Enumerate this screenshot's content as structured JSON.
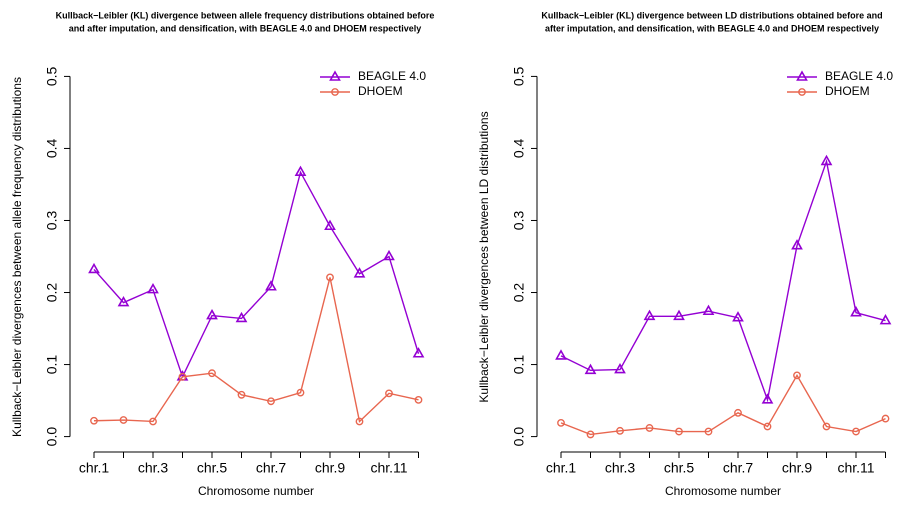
{
  "chart_data": [
    {
      "type": "line",
      "title": [
        "Kullback−Leibler (KL) divergence between allele frequency distributions obtained before",
        "and after imputation, and densification, with BEAGLE 4.0 and DHOEM respectively"
      ],
      "x_label": "Chromosome number",
      "y_label": "Kullback−Leibler divergences between allele frequency distributions",
      "categories": [
        "chr.1",
        null,
        "chr.3",
        null,
        "chr.5",
        null,
        "chr.7",
        null,
        "chr.9",
        null,
        "chr.11",
        null
      ],
      "series": [
        {
          "name": "BEAGLE 4.0",
          "color": "#9400d3",
          "marker": "triangle",
          "values": [
            0.232,
            0.186,
            0.204,
            0.083,
            0.168,
            0.164,
            0.208,
            0.367,
            0.292,
            0.226,
            0.25,
            0.115
          ]
        },
        {
          "name": "DHOEM",
          "color": "#e8664f",
          "marker": "circle",
          "values": [
            0.022,
            0.023,
            0.021,
            0.083,
            0.088,
            0.058,
            0.049,
            0.061,
            0.221,
            0.021,
            0.06,
            0.051
          ]
        }
      ],
      "ylim": [
        -0.02,
        0.52
      ],
      "yticks": [
        {
          "value": 0,
          "label": "0.0"
        },
        0.1,
        0.2,
        0.3,
        0.4,
        0.5
      ],
      "legend": "top-right"
    },
    {
      "type": "line",
      "title": [
        "Kullback−Leibler (KL) divergence between LD distributions obtained before and",
        "after imputation, and densification, with BEAGLE 4.0 and DHOEM respectively"
      ],
      "x_label": "Chromosome number",
      "y_label": "Kullback−Leibler divergences between LD distributions",
      "categories": [
        "chr.1",
        null,
        "chr.3",
        null,
        "chr.5",
        null,
        "chr.7",
        null,
        "chr.9",
        null,
        "chr.11",
        null
      ],
      "series": [
        {
          "name": "BEAGLE 4.0",
          "color": "#9400d3",
          "marker": "triangle",
          "values": [
            0.112,
            0.092,
            0.093,
            0.167,
            0.167,
            0.174,
            0.165,
            0.051,
            0.265,
            0.382,
            0.172,
            0.161
          ]
        },
        {
          "name": "DHOEM",
          "color": "#e8664f",
          "marker": "circle",
          "values": [
            0.019,
            0.003,
            0.008,
            0.012,
            0.007,
            0.007,
            0.033,
            0.014,
            0.085,
            0.014,
            0.007,
            0.025
          ]
        }
      ],
      "ylim": [
        -0.02,
        0.52
      ],
      "yticks": [
        {
          "value": 0,
          "label": "0.0"
        },
        0.1,
        0.2,
        0.3,
        0.4,
        0.5
      ],
      "legend": "top-right"
    }
  ]
}
